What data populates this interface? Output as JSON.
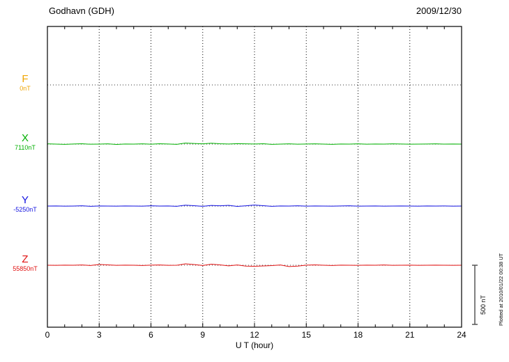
{
  "header": {
    "station": "Godhavn (GDH)",
    "date": "2009/12/30"
  },
  "x_axis": {
    "label": "U T (hour)",
    "tick_labels": [
      "0",
      "3",
      "6",
      "9",
      "12",
      "15",
      "18",
      "21",
      "24"
    ],
    "range_hours": [
      0,
      24
    ]
  },
  "scale_bar": {
    "label": "500 nT",
    "value_nT": 500
  },
  "plot_note": "Plotted at 2010/01/22 00:38 UT",
  "chart_data": {
    "type": "line",
    "title": "Godhavn (GDH) magnetogram",
    "date": "2009/12/30",
    "xlabel": "U T (hour)",
    "x_range_hours": [
      0,
      24
    ],
    "x_step_hours": 0.5,
    "grid": "dotted vertical lines every 3 hours, dotted horizontal baseline per trace",
    "scale_bar_nT": 500,
    "series": [
      {
        "name": "F",
        "baseline_label": "0nT",
        "label_color": "#f0a500",
        "trace_color": "#303030",
        "line_style": "dotted",
        "baseline_frac": 0.1944,
        "offsets_nT": [
          0,
          0,
          0,
          0,
          0,
          0,
          0,
          0,
          0,
          0,
          0,
          0,
          0,
          0,
          0,
          0,
          0,
          0,
          0,
          0,
          0,
          0,
          0,
          0,
          0,
          0,
          0,
          0,
          0,
          0,
          0,
          0,
          0,
          0,
          0,
          0,
          0,
          0,
          0,
          0,
          0,
          0,
          0,
          0,
          0,
          0,
          0,
          0,
          0
        ]
      },
      {
        "name": "X",
        "baseline_label": "7110nT",
        "label_color": "#00b000",
        "trace_color": "#00b000",
        "line_style": "solid",
        "baseline_frac": 0.3912,
        "offsets_nT": [
          2,
          0,
          -2,
          1,
          3,
          -1,
          0,
          2,
          -3,
          1,
          0,
          2,
          -1,
          3,
          1,
          -2,
          9,
          5,
          2,
          7,
          3,
          1,
          4,
          2,
          1,
          3,
          -2,
          0,
          2,
          -1,
          1,
          2,
          0,
          -2,
          1,
          0,
          2,
          -1,
          1,
          0,
          2,
          1,
          -1,
          0,
          1,
          2,
          0,
          1,
          0
        ]
      },
      {
        "name": "Y",
        "baseline_label": "-5250nT",
        "label_color": "#1010e0",
        "trace_color": "#1010e0",
        "line_style": "solid",
        "baseline_frac": 0.5972,
        "offsets_nT": [
          0,
          1,
          -1,
          0,
          2,
          -2,
          1,
          0,
          -1,
          1,
          0,
          -1,
          2,
          0,
          1,
          -2,
          7,
          3,
          -2,
          5,
          2,
          6,
          -3,
          2,
          9,
          3,
          -2,
          1,
          0,
          2,
          -1,
          1,
          0,
          -1,
          1,
          2,
          -1,
          0,
          1,
          -1,
          0,
          1,
          0,
          -1,
          1,
          0,
          1,
          -1,
          0
        ]
      },
      {
        "name": "Z",
        "baseline_label": "55850nT",
        "label_color": "#e01010",
        "trace_color": "#e01010",
        "line_style": "solid",
        "baseline_frac": 0.794,
        "offsets_nT": [
          0,
          -1,
          1,
          0,
          2,
          -2,
          7,
          3,
          -1,
          1,
          0,
          -2,
          1,
          2,
          -1,
          0,
          12,
          6,
          -2,
          9,
          3,
          -5,
          2,
          -7,
          -9,
          -6,
          -3,
          2,
          -11,
          -7,
          1,
          3,
          0,
          -2,
          1,
          0,
          -1,
          1,
          0,
          2,
          -1,
          0,
          1,
          -1,
          0,
          1,
          0,
          -1,
          0
        ]
      }
    ]
  }
}
